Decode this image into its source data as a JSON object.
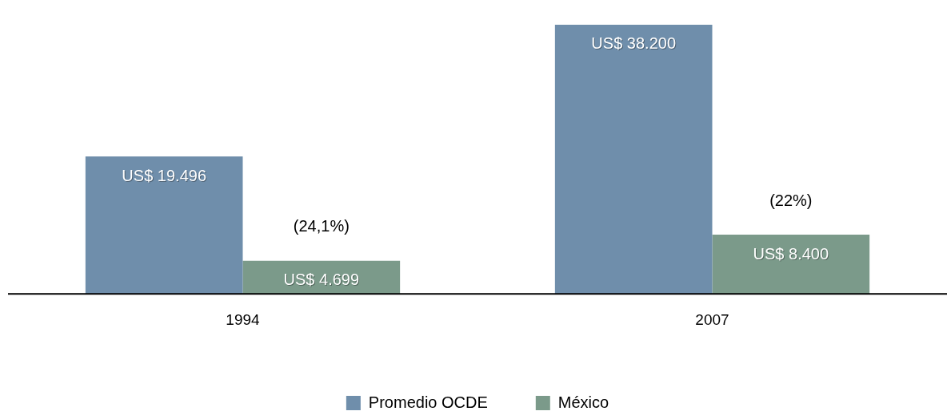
{
  "chart_data": {
    "type": "bar",
    "categories": [
      "1994",
      "2007"
    ],
    "series": [
      {
        "name": "Promedio OCDE",
        "color": "#6f8eab",
        "values": [
          19496,
          38200
        ],
        "value_labels": [
          "US$ 19.496",
          "US$ 38.200"
        ]
      },
      {
        "name": "México",
        "color": "#7b9a8a",
        "values": [
          4699,
          8400
        ],
        "value_labels": [
          "US$ 4.699",
          "US$ 8.400"
        ]
      }
    ],
    "annotations": [
      "(24,1%)",
      "(22%)"
    ],
    "legend": "bottom",
    "grid": false
  }
}
